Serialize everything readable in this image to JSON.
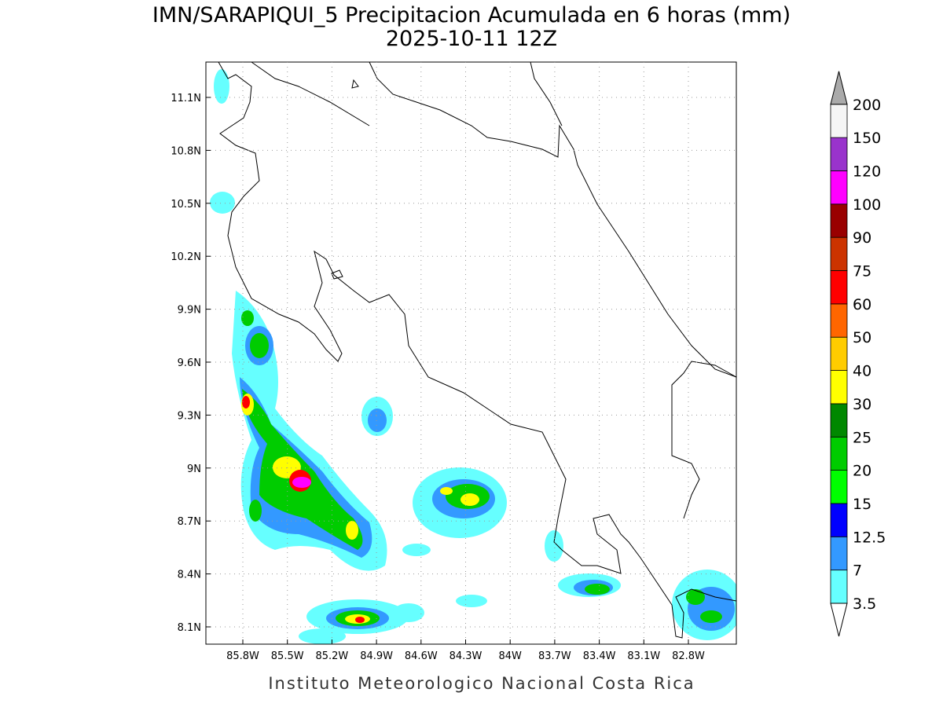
{
  "header": {
    "title": "IMN/SARAPIQUI_5 Precipitacion Acumulada en 6 horas (mm)",
    "subtitle": "2025-10-11 12Z"
  },
  "map": {
    "lat_labels": [
      "11.1N",
      "10.8N",
      "10.5N",
      "10.2N",
      "9.9N",
      "9.6N",
      "9.3N",
      "9N",
      "8.7N",
      "8.4N",
      "8.1N"
    ],
    "lon_labels": [
      "85.8W",
      "85.5W",
      "85.2W",
      "84.9W",
      "84.6W",
      "84.3W",
      "84W",
      "83.7W",
      "83.4W",
      "83.1W",
      "82.8W"
    ]
  },
  "colorbar": {
    "labels": [
      "3.5",
      "7",
      "12.5",
      "15",
      "20",
      "25",
      "30",
      "40",
      "50",
      "60",
      "75",
      "90",
      "100",
      "120",
      "150",
      "200"
    ],
    "colors": [
      "#66ffff",
      "#3399ff",
      "#0000ff",
      "#00ff00",
      "#00cc00",
      "#008800",
      "#ffff00",
      "#ffcc00",
      "#ff6600",
      "#ff0000",
      "#cc3300",
      "#990000",
      "#ff00ff",
      "#9933cc",
      "#f5f5f5"
    ],
    "over_color": "#aaaaaa",
    "under_color": "#ffffff"
  },
  "footer": {
    "text": "Instituto Meteorologico Nacional Costa Rica"
  }
}
